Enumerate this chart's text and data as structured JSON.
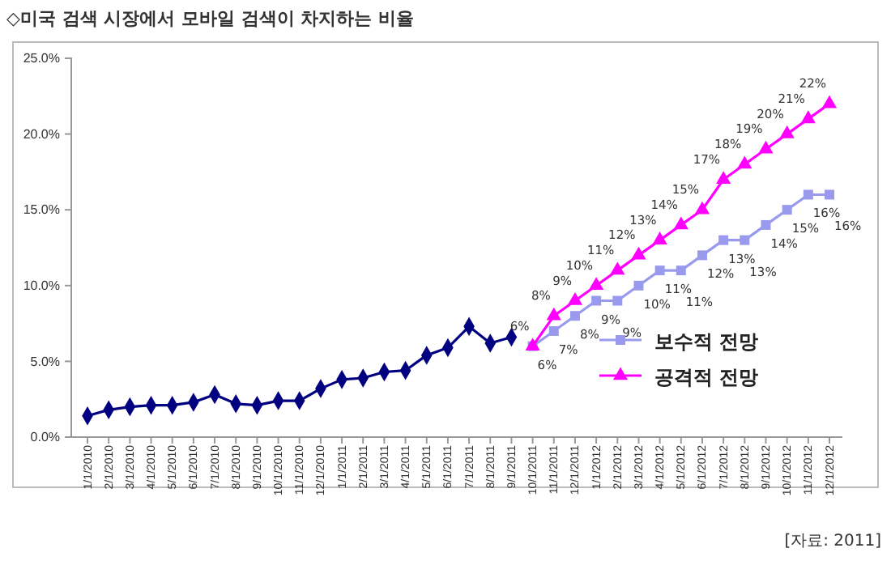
{
  "chart_data": {
    "type": "line",
    "title": "◇미국 검색 시장에서 모바일 검색이 차지하는 비율",
    "categories": [
      "1/1/2010",
      "2/1/2010",
      "3/1/2010",
      "4/1/2010",
      "5/1/2010",
      "6/1/2010",
      "7/1/2010",
      "8/1/2010",
      "9/1/2010",
      "10/1/2010",
      "11/1/2010",
      "12/1/2010",
      "1/1/2011",
      "2/1/2011",
      "3/1/2011",
      "4/1/2011",
      "5/1/2011",
      "6/1/2011",
      "7/1/2011",
      "8/1/2011",
      "9/1/2011",
      "10/1/2011",
      "11/1/2011",
      "12/1/2011",
      "1/1/2012",
      "2/1/2012",
      "3/1/2012",
      "4/1/2012",
      "5/1/2012",
      "6/1/2012",
      "7/1/2012",
      "8/1/2012",
      "9/1/2012",
      "10/1/2012",
      "11/1/2012",
      "12/1/2012"
    ],
    "series": [
      {
        "color": "#000080",
        "marker": "diamond",
        "values": [
          1.4,
          1.8,
          2.0,
          2.1,
          2.1,
          2.3,
          2.8,
          2.2,
          2.1,
          2.4,
          2.4,
          3.2,
          3.8,
          3.9,
          4.3,
          4.4,
          5.4,
          5.9,
          7.3,
          6.2,
          6.6,
          null,
          null,
          null,
          null,
          null,
          null,
          null,
          null,
          null,
          null,
          null,
          null,
          null,
          null,
          null
        ]
      },
      {
        "name": "보수적 전망",
        "color": "#9999ee",
        "marker": "square",
        "values": [
          null,
          null,
          null,
          null,
          null,
          null,
          null,
          null,
          null,
          null,
          null,
          null,
          null,
          null,
          null,
          null,
          null,
          null,
          null,
          null,
          null,
          6,
          7,
          8,
          9,
          9,
          10,
          11,
          11,
          12,
          13,
          13,
          14,
          15,
          16,
          16
        ],
        "value_labels": [
          null,
          null,
          null,
          null,
          null,
          null,
          null,
          null,
          null,
          null,
          null,
          null,
          null,
          null,
          null,
          null,
          null,
          null,
          null,
          null,
          null,
          "6%",
          "7%",
          "8%",
          "9%",
          "9%",
          "10%",
          "11%",
          "11%",
          "12%",
          "13%",
          "13%",
          "14%",
          "15%",
          "16%",
          "16%"
        ]
      },
      {
        "name": "공격적 전망",
        "color": "#ff00ff",
        "marker": "triangle",
        "values": [
          null,
          null,
          null,
          null,
          null,
          null,
          null,
          null,
          null,
          null,
          null,
          null,
          null,
          null,
          null,
          null,
          null,
          null,
          null,
          null,
          null,
          6,
          8,
          9,
          10,
          11,
          12,
          13,
          14,
          15,
          17,
          18,
          19,
          20,
          21,
          22
        ],
        "value_labels": [
          null,
          null,
          null,
          null,
          null,
          null,
          null,
          null,
          null,
          null,
          null,
          null,
          null,
          null,
          null,
          null,
          null,
          null,
          null,
          null,
          null,
          "6%",
          "8%",
          "9%",
          "10%",
          "11%",
          "12%",
          "13%",
          "14%",
          "15%",
          "17%",
          "18%",
          "19%",
          "20%",
          "21%",
          "22%"
        ]
      }
    ],
    "ylim": [
      0,
      25
    ],
    "yticks": [
      {
        "value": 0,
        "label": "0.0%"
      },
      {
        "value": 5,
        "label": "5.0%"
      },
      {
        "value": 10,
        "label": "10.0%"
      },
      {
        "value": 15,
        "label": "15.0%"
      },
      {
        "value": 20,
        "label": "20.0%"
      },
      {
        "value": 25,
        "label": "25.0%"
      }
    ],
    "grid": false,
    "legend": "bottom right",
    "annotations": [
      "[자료: 2011]"
    ]
  }
}
